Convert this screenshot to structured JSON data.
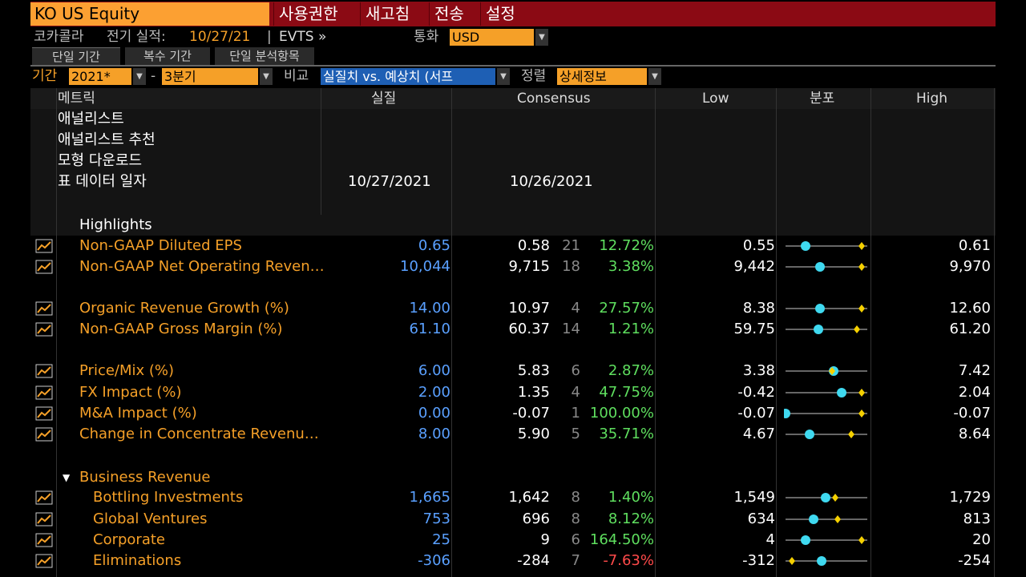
{
  "header": {
    "ticker": "KO US Equity",
    "menu": [
      "사용권한",
      "새고침",
      "전송",
      "설정"
    ]
  },
  "subheader": {
    "company": "코카콜라",
    "last_report_label": "전기 실적:",
    "last_report_date": "10/27/21",
    "evts": "EVTS »",
    "currency_label": "통화",
    "currency_value": "USD"
  },
  "tabs": [
    "단일 기간",
    "복수 기간",
    "단일 분석항목"
  ],
  "filters": {
    "period_label": "기간",
    "year": "2021*",
    "dash": "-",
    "quarter": "3분기",
    "compare_label": "비교",
    "compare_value": "실질치 vs. 예상치 (서프",
    "sort_label": "정렬",
    "sort_value": "상세정보"
  },
  "columns": {
    "metric": "메트릭",
    "actual": "실질",
    "consensus": "Consensus",
    "low": "Low",
    "dist": "분포",
    "high": "High"
  },
  "info_rows": [
    {
      "label": "애널리스트"
    },
    {
      "label": "애널리스트 추천"
    },
    {
      "label": "모형 다운로드"
    },
    {
      "label": "표 데이터 일자",
      "actual": "10/27/2021",
      "consensus": "10/26/2021"
    }
  ],
  "sections": {
    "highlights": "Highlights",
    "business_revenue": "Business Revenue"
  },
  "rows": [
    {
      "metric": "Non-GAAP Diluted EPS",
      "actual": "0.65",
      "cons": "0.58",
      "n": "21",
      "surp": "12.72%",
      "sign": "pos",
      "low": "0.55",
      "high": "0.61",
      "dot": 0.25,
      "dia": 0.95,
      "indent": 0
    },
    {
      "metric": "Non-GAAP Net Operating Reven…",
      "actual": "10,044",
      "cons": "9,715",
      "n": "18",
      "surp": "3.38%",
      "sign": "pos",
      "low": "9,442",
      "high": "9,970",
      "dot": 0.43,
      "dia": 0.95,
      "indent": 0
    },
    {
      "metric": "Organic Revenue Growth (%)",
      "actual": "14.00",
      "cons": "10.97",
      "n": "4",
      "surp": "27.57%",
      "sign": "pos",
      "low": "8.38",
      "high": "12.60",
      "dot": 0.43,
      "dia": 0.95,
      "indent": 0
    },
    {
      "metric": "Non-GAAP Gross Margin (%)",
      "actual": "61.10",
      "cons": "60.37",
      "n": "14",
      "surp": "1.21%",
      "sign": "pos",
      "low": "59.75",
      "high": "61.20",
      "dot": 0.41,
      "dia": 0.89,
      "indent": 0
    },
    {
      "metric": "Price/Mix (%)",
      "actual": "6.00",
      "cons": "5.83",
      "n": "6",
      "surp": "2.87%",
      "sign": "pos",
      "low": "3.38",
      "high": "7.42",
      "dot": 0.6,
      "dia": 0.58,
      "indent": 0
    },
    {
      "metric": "FX Impact (%)",
      "actual": "2.00",
      "cons": "1.35",
      "n": "4",
      "surp": "47.75%",
      "sign": "pos",
      "low": "-0.42",
      "high": "2.04",
      "dot": 0.7,
      "dia": 0.95,
      "indent": 0
    },
    {
      "metric": "M&A Impact (%)",
      "actual": "0.00",
      "cons": "-0.07",
      "n": "1",
      "surp": "100.00%",
      "sign": "pos",
      "low": "-0.07",
      "high": "-0.07",
      "dot": 0.0,
      "dia": 0.95,
      "indent": 0
    },
    {
      "metric": "Change in Concentrate Revenu…",
      "actual": "8.00",
      "cons": "5.90",
      "n": "5",
      "surp": "35.71%",
      "sign": "pos",
      "low": "4.67",
      "high": "8.64",
      "dot": 0.3,
      "dia": 0.82,
      "indent": 0
    },
    {
      "metric": "Bottling Investments",
      "actual": "1,665",
      "cons": "1,642",
      "n": "8",
      "surp": "1.40%",
      "sign": "pos",
      "low": "1,549",
      "high": "1,729",
      "dot": 0.5,
      "dia": 0.62,
      "indent": 1
    },
    {
      "metric": "Global Ventures",
      "actual": "753",
      "cons": "696",
      "n": "8",
      "surp": "8.12%",
      "sign": "pos",
      "low": "634",
      "high": "813",
      "dot": 0.35,
      "dia": 0.65,
      "indent": 1
    },
    {
      "metric": "Corporate",
      "actual": "25",
      "cons": "9",
      "n": "6",
      "surp": "164.50%",
      "sign": "pos",
      "low": "4",
      "high": "20",
      "dot": 0.25,
      "dia": 0.95,
      "indent": 1
    },
    {
      "metric": "Eliminations",
      "actual": "-306",
      "cons": "-284",
      "n": "7",
      "surp": "-7.63%",
      "sign": "neg",
      "low": "-312",
      "high": "-254",
      "dot": 0.45,
      "dia": 0.08,
      "indent": 1
    }
  ],
  "colors": {
    "accent": "#f5a028",
    "actual": "#5aa0ff",
    "positive": "#5fdf5f",
    "negative": "#ff4a4a",
    "dot": "#3fd9f0",
    "diamond": "#f5d000"
  }
}
